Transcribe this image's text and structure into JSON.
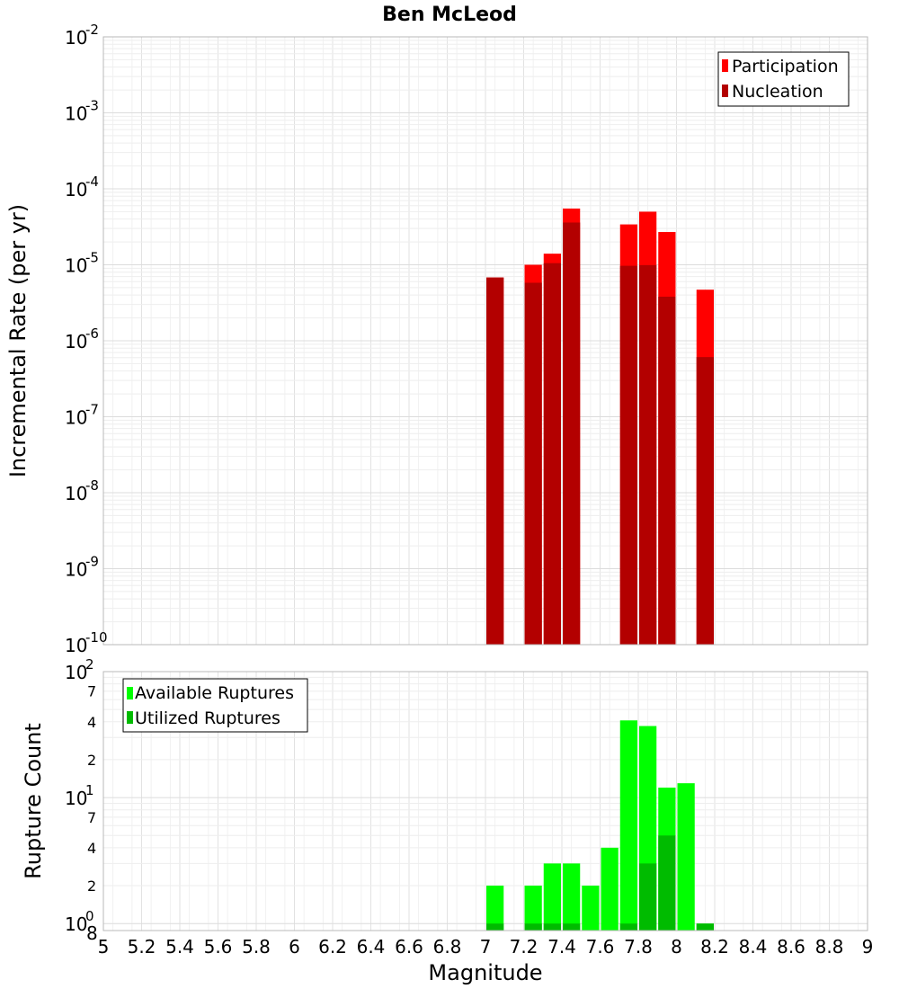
{
  "chart_data": [
    {
      "type": "bar",
      "title": "Ben McLeod",
      "xlabel": "Magnitude",
      "ylabel": "Incremental Rate (per yr)",
      "yscale": "log",
      "xlim": [
        5,
        9
      ],
      "ylim": [
        1e-10,
        0.01
      ],
      "x_ticks": [
        "5",
        "5.2",
        "5.4",
        "5.6",
        "5.8",
        "6",
        "6.2",
        "6.4",
        "6.6",
        "6.8",
        "7",
        "7.2",
        "7.4",
        "7.6",
        "7.8",
        "8",
        "8.2",
        "8.4",
        "8.6",
        "8.8",
        "9"
      ],
      "y_ticks": [
        {
          "base": "10",
          "exp": "-2"
        },
        {
          "base": "10",
          "exp": "-3"
        },
        {
          "base": "10",
          "exp": "-4"
        },
        {
          "base": "10",
          "exp": "-5"
        },
        {
          "base": "10",
          "exp": "-6"
        },
        {
          "base": "10",
          "exp": "-7"
        },
        {
          "base": "10",
          "exp": "-8"
        },
        {
          "base": "10",
          "exp": "-9"
        },
        {
          "base": "10",
          "exp": "-10"
        }
      ],
      "legend": {
        "position": "top-right",
        "entries": [
          "Participation",
          "Nucleation"
        ]
      },
      "x": [
        7.05,
        7.25,
        7.35,
        7.45,
        7.75,
        7.85,
        7.95,
        8.15
      ],
      "series": [
        {
          "name": "Participation",
          "color": "#ff0000",
          "values": [
            6.8e-06,
            1e-05,
            1.4e-05,
            5.5e-05,
            3.4e-05,
            5e-05,
            2.7e-05,
            4.7e-06
          ]
        },
        {
          "name": "Nucleation",
          "color": "#b30000",
          "values": [
            6.8e-06,
            5.8e-06,
            1.05e-05,
            3.6e-05,
            9.7e-06,
            9.9e-06,
            3.8e-06,
            6.1e-07
          ]
        }
      ]
    },
    {
      "type": "bar",
      "xlabel": "Magnitude",
      "ylabel": "Rupture Count",
      "yscale": "log",
      "xlim": [
        5,
        9
      ],
      "ylim": [
        0.88,
        100
      ],
      "major_y_ticks": [
        {
          "base": "10",
          "exp": "2"
        },
        {
          "base": "10",
          "exp": "1"
        },
        {
          "base": "10",
          "exp": "0"
        }
      ],
      "minor_y_ticks": [
        {
          "label": "7",
          "value": 70
        },
        {
          "label": "4",
          "value": 40
        },
        {
          "label": "2",
          "value": 20
        },
        {
          "label": "7",
          "value": 7
        },
        {
          "label": "4",
          "value": 4
        },
        {
          "label": "2",
          "value": 2
        },
        {
          "label": "8",
          "value": 0.88
        }
      ],
      "legend": {
        "position": "top-left",
        "entries": [
          "Available Ruptures",
          "Utilized Ruptures"
        ]
      },
      "x": [
        7.05,
        7.25,
        7.35,
        7.45,
        7.55,
        7.65,
        7.75,
        7.85,
        7.95,
        8.05,
        8.15
      ],
      "series": [
        {
          "name": "Available Ruptures",
          "color": "#00ff00",
          "values": [
            2,
            2,
            3,
            3,
            2,
            4,
            41,
            37,
            12,
            13,
            1
          ]
        },
        {
          "name": "Utilized Ruptures",
          "color": "#00bb00",
          "values": [
            1,
            1,
            1,
            1,
            0,
            0,
            1,
            3,
            5,
            0,
            1
          ]
        }
      ]
    }
  ]
}
